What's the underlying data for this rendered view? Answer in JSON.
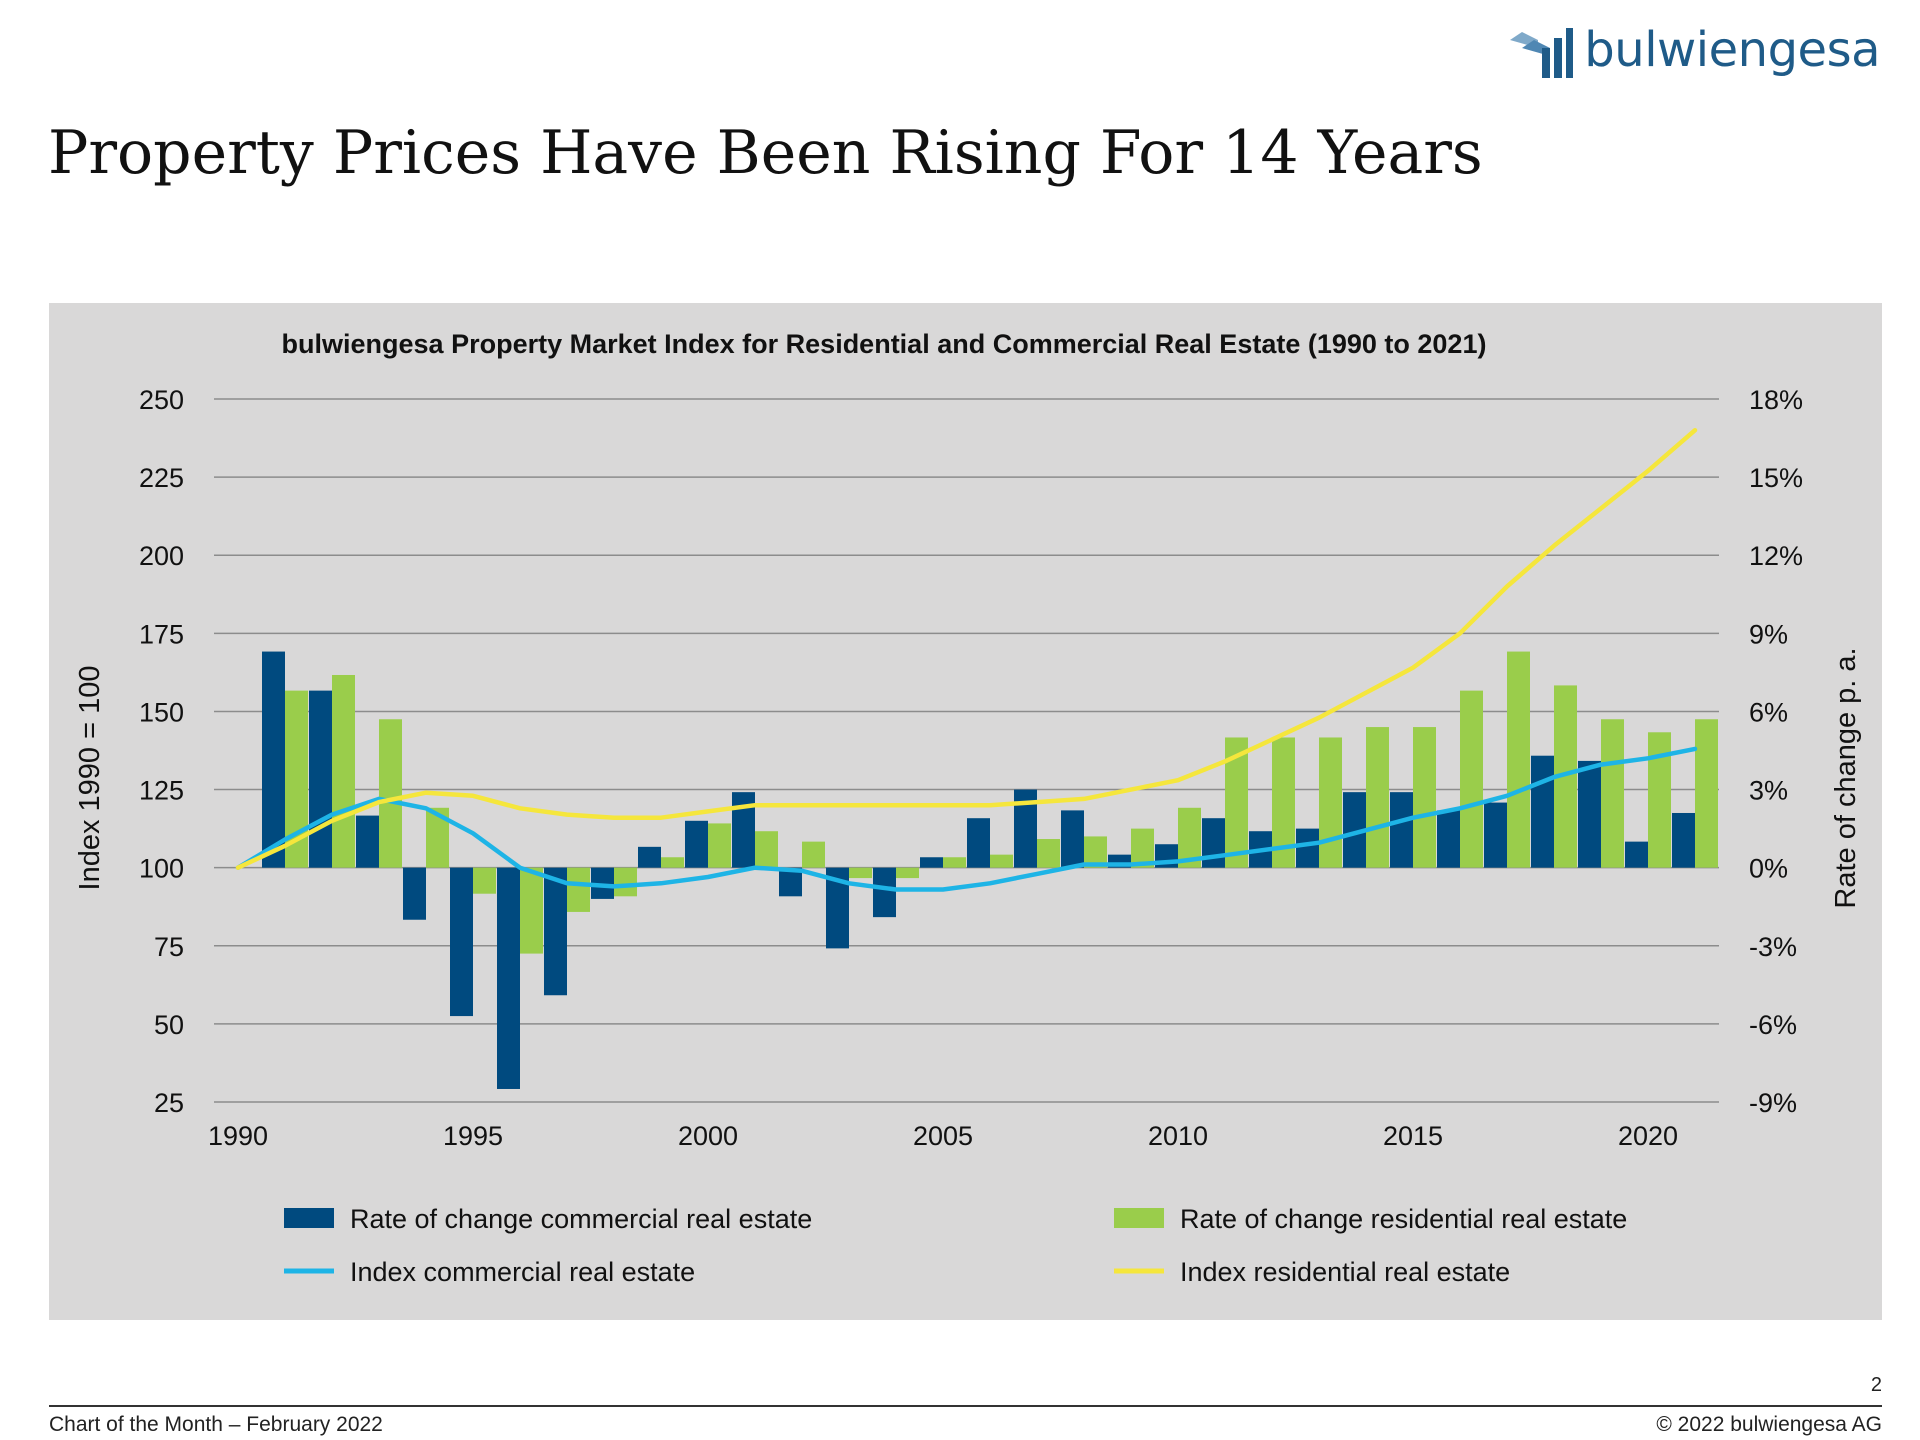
{
  "header": {
    "logo_text": "bulwiengesa",
    "title": "Property Prices Have Been Rising For 14 Years"
  },
  "colors": {
    "commercial_bar": "#004a7f",
    "residential_bar": "#9acd4b",
    "commercial_line": "#1eb4e6",
    "residential_line": "#f5e63c",
    "panel": "#d9d8d8"
  },
  "chart_data": {
    "type": "bar",
    "title": "bulwiengesa Property Market Index for Residential and Commercial Real Estate (1990 to 2021)",
    "ylabel": "Index 1990 = 100",
    "ylabel_right": "Rate of change p. a.",
    "ylim": [
      25,
      250
    ],
    "ylim_right": [
      -9,
      18
    ],
    "yticks": [
      "250",
      "225",
      "200",
      "175",
      "150",
      "125",
      "100",
      "75",
      "50",
      "25"
    ],
    "yticks_right": [
      "18%",
      "15%",
      "12%",
      "9%",
      "6%",
      "3%",
      "0%",
      "-3%",
      "-6%",
      "-9%"
    ],
    "xticks": [
      "1990",
      "1995",
      "2000",
      "2005",
      "2010",
      "2015",
      "2020"
    ],
    "grid": true,
    "legend_position": "bottom",
    "years": [
      1990,
      1991,
      1992,
      1993,
      1994,
      1995,
      1996,
      1997,
      1998,
      1999,
      2000,
      2001,
      2002,
      2003,
      2004,
      2005,
      2006,
      2007,
      2008,
      2009,
      2010,
      2011,
      2012,
      2013,
      2014,
      2015,
      2016,
      2017,
      2018,
      2019,
      2020,
      2021
    ],
    "series": [
      {
        "name": "Rate of change commercial real estate",
        "kind": "bar",
        "axis": "right",
        "color": "#004a7f",
        "values": [
          null,
          8.3,
          6.8,
          2.0,
          -2.0,
          -5.7,
          -8.5,
          -4.9,
          -1.2,
          0.8,
          1.8,
          2.9,
          -1.1,
          -3.1,
          -1.9,
          0.4,
          1.9,
          3.0,
          2.2,
          0.5,
          0.9,
          1.9,
          1.4,
          1.5,
          2.9,
          2.9,
          2.2,
          2.5,
          4.3,
          4.1,
          1.0,
          2.1
        ]
      },
      {
        "name": "Rate of change residential real estate",
        "kind": "bar",
        "axis": "right",
        "color": "#9acd4b",
        "values": [
          null,
          6.8,
          7.4,
          5.7,
          2.3,
          -1.0,
          -3.3,
          -1.7,
          -1.1,
          0.4,
          1.7,
          1.4,
          1.0,
          -0.4,
          -0.4,
          0.4,
          0.5,
          1.1,
          1.2,
          1.5,
          2.3,
          5.0,
          5.0,
          5.0,
          5.4,
          5.4,
          6.8,
          8.3,
          7.0,
          5.7,
          5.2,
          5.7
        ]
      },
      {
        "name": "Index commercial real estate",
        "kind": "line",
        "axis": "left",
        "color": "#1eb4e6",
        "values": [
          100,
          109,
          117,
          122,
          119,
          111,
          100,
          95,
          94,
          95,
          97,
          100,
          99,
          95,
          93,
          93,
          95,
          98,
          101,
          101,
          102,
          104,
          106,
          108,
          112,
          116,
          119,
          123,
          129,
          133,
          135,
          138
        ]
      },
      {
        "name": "Index residential real estate",
        "kind": "line",
        "axis": "left",
        "color": "#f5e63c",
        "values": [
          100,
          107,
          115,
          121,
          124,
          123,
          119,
          117,
          116,
          116,
          118,
          120,
          120,
          120,
          120,
          120,
          120,
          121,
          122,
          125,
          128,
          134,
          141,
          148,
          156,
          164,
          175,
          190,
          203,
          215,
          227,
          240
        ]
      }
    ]
  },
  "footer": {
    "page_number": "2",
    "left": "Chart of the Month – February 2022",
    "right": "© 2022 bulwiengesa AG"
  }
}
